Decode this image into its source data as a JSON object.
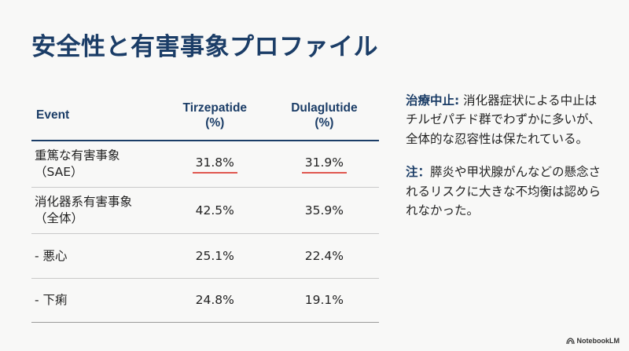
{
  "title": "安全性と有害事象プロファイル",
  "table": {
    "headers": {
      "event": "Event",
      "col1_name": "Tirzepatide",
      "col1_unit": "(%)",
      "col2_name": "Dulaglutide",
      "col2_unit": "(%)"
    },
    "rows": [
      {
        "event_line1": "重篤な有害事象",
        "event_line2": "（SAE）",
        "tirzepatide": "31.8%",
        "dulaglutide": "31.9%",
        "highlighted": true
      },
      {
        "event_line1": "消化器系有害事象",
        "event_line2": "（全体）",
        "tirzepatide": "42.5%",
        "dulaglutide": "35.9%",
        "highlighted": false
      },
      {
        "event_line1": "- 悪心",
        "event_line2": "",
        "tirzepatide": "25.1%",
        "dulaglutide": "22.4%",
        "highlighted": false
      },
      {
        "event_line1": "- 下痢",
        "event_line2": "",
        "tirzepatide": "24.8%",
        "dulaglutide": "19.1%",
        "highlighted": false
      }
    ]
  },
  "notes": [
    {
      "label": "治療中止:",
      "text": "消化器症状による中止はチルゼパチド群でわずかに多いが、全体的な忍容性は保たれている。"
    },
    {
      "label": "注：",
      "text": "膵炎や甲状腺がんなどの懸念されるリスクに大きな不均衡は認められなかった。"
    }
  ],
  "brand": {
    "name": "NotebookLM",
    "icon": "notebooklm-logo-icon"
  },
  "colors": {
    "accent": "#1b3d67",
    "highlight": "#e0574f",
    "background": "#f8f8f7"
  }
}
